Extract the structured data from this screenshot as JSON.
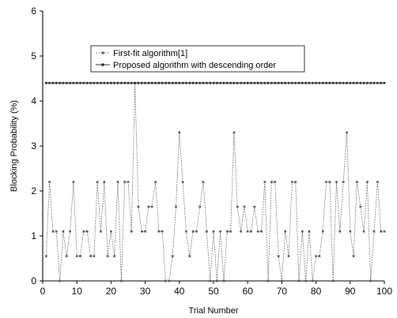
{
  "chart_data": {
    "type": "line",
    "xlabel": "Trial Number",
    "ylabel": "Blocking Probability (%)",
    "xlim": [
      0,
      100
    ],
    "ylim": [
      0,
      6
    ],
    "x_ticks": [
      0,
      10,
      20,
      30,
      40,
      50,
      60,
      70,
      80,
      90,
      100
    ],
    "y_ticks": [
      0,
      1,
      2,
      3,
      4,
      5,
      6
    ],
    "grid": false,
    "legend_position": "top-left",
    "series": [
      {
        "name": "First-fit algorithm[1]",
        "color": "#777777",
        "marker": "square",
        "x": [
          1,
          2,
          3,
          4,
          5,
          6,
          7,
          8,
          9,
          10,
          11,
          12,
          13,
          14,
          15,
          16,
          17,
          18,
          19,
          20,
          21,
          22,
          23,
          24,
          25,
          26,
          27,
          28,
          29,
          30,
          31,
          32,
          33,
          34,
          35,
          36,
          37,
          38,
          39,
          40,
          41,
          42,
          43,
          44,
          45,
          46,
          47,
          48,
          49,
          50,
          51,
          52,
          53,
          54,
          55,
          56,
          57,
          58,
          59,
          60,
          61,
          62,
          63,
          64,
          65,
          66,
          67,
          68,
          69,
          70,
          71,
          72,
          73,
          74,
          75,
          76,
          77,
          78,
          79,
          80,
          81,
          82,
          83,
          84,
          85,
          86,
          87,
          88,
          89,
          90,
          91,
          92,
          93,
          94,
          95,
          96,
          97,
          98,
          99,
          100
        ],
        "values": [
          0.55,
          2.2,
          1.1,
          1.1,
          0,
          1.1,
          0.55,
          1.1,
          2.2,
          0.55,
          0.55,
          1.1,
          1.1,
          0.55,
          0.55,
          2.2,
          1.1,
          2.2,
          0.55,
          1.1,
          0.55,
          2.2,
          0,
          2.2,
          2.2,
          1.1,
          4.4,
          1.65,
          1.1,
          1.1,
          1.65,
          1.65,
          2.2,
          1.1,
          1.1,
          0,
          0,
          0.55,
          1.65,
          3.3,
          2.2,
          1.1,
          0.55,
          1.1,
          1.1,
          1.65,
          2.2,
          1.1,
          0,
          1.1,
          0,
          1.1,
          0,
          1.1,
          1.1,
          3.3,
          1.65,
          1.1,
          1.65,
          1.1,
          1.1,
          1.65,
          1.1,
          1.1,
          2.2,
          0,
          2.2,
          2.2,
          0.55,
          0,
          1.1,
          0.55,
          2.2,
          2.2,
          0,
          1.1,
          0,
          1.1,
          0,
          0.55,
          0.55,
          1.1,
          2.2,
          2.2,
          0,
          2.2,
          1.1,
          2.2,
          3.3,
          1.1,
          0.55,
          2.2,
          1.65,
          1.1,
          2.2,
          0,
          1.1,
          2.2,
          1.1,
          1.1
        ]
      },
      {
        "name": "Proposed algorithm with descending order",
        "color": "#333333",
        "marker": "dot",
        "x": [
          1,
          2,
          3,
          4,
          5,
          6,
          7,
          8,
          9,
          10,
          11,
          12,
          13,
          14,
          15,
          16,
          17,
          18,
          19,
          20,
          21,
          22,
          23,
          24,
          25,
          26,
          27,
          28,
          29,
          30,
          31,
          32,
          33,
          34,
          35,
          36,
          37,
          38,
          39,
          40,
          41,
          42,
          43,
          44,
          45,
          46,
          47,
          48,
          49,
          50,
          51,
          52,
          53,
          54,
          55,
          56,
          57,
          58,
          59,
          60,
          61,
          62,
          63,
          64,
          65,
          66,
          67,
          68,
          69,
          70,
          71,
          72,
          73,
          74,
          75,
          76,
          77,
          78,
          79,
          80,
          81,
          82,
          83,
          84,
          85,
          86,
          87,
          88,
          89,
          90,
          91,
          92,
          93,
          94,
          95,
          96,
          97,
          98,
          99,
          100
        ],
        "values": [
          4.4,
          4.4,
          4.4,
          4.4,
          4.4,
          4.4,
          4.4,
          4.4,
          4.4,
          4.4,
          4.4,
          4.4,
          4.4,
          4.4,
          4.4,
          4.4,
          4.4,
          4.4,
          4.4,
          4.4,
          4.4,
          4.4,
          4.4,
          4.4,
          4.4,
          4.4,
          4.4,
          4.4,
          4.4,
          4.4,
          4.4,
          4.4,
          4.4,
          4.4,
          4.4,
          4.4,
          4.4,
          4.4,
          4.4,
          4.4,
          4.4,
          4.4,
          4.4,
          4.4,
          4.4,
          4.4,
          4.4,
          4.4,
          4.4,
          4.4,
          4.4,
          4.4,
          4.4,
          4.4,
          4.4,
          4.4,
          4.4,
          4.4,
          4.4,
          4.4,
          4.4,
          4.4,
          4.4,
          4.4,
          4.4,
          4.4,
          4.4,
          4.4,
          4.4,
          4.4,
          4.4,
          4.4,
          4.4,
          4.4,
          4.4,
          4.4,
          4.4,
          4.4,
          4.4,
          4.4,
          4.4,
          4.4,
          4.4,
          4.4,
          4.4,
          4.4,
          4.4,
          4.4,
          4.4,
          4.4,
          4.4,
          4.4,
          4.4,
          4.4,
          4.4,
          4.4,
          4.4,
          4.4,
          4.4,
          4.4
        ]
      }
    ]
  }
}
